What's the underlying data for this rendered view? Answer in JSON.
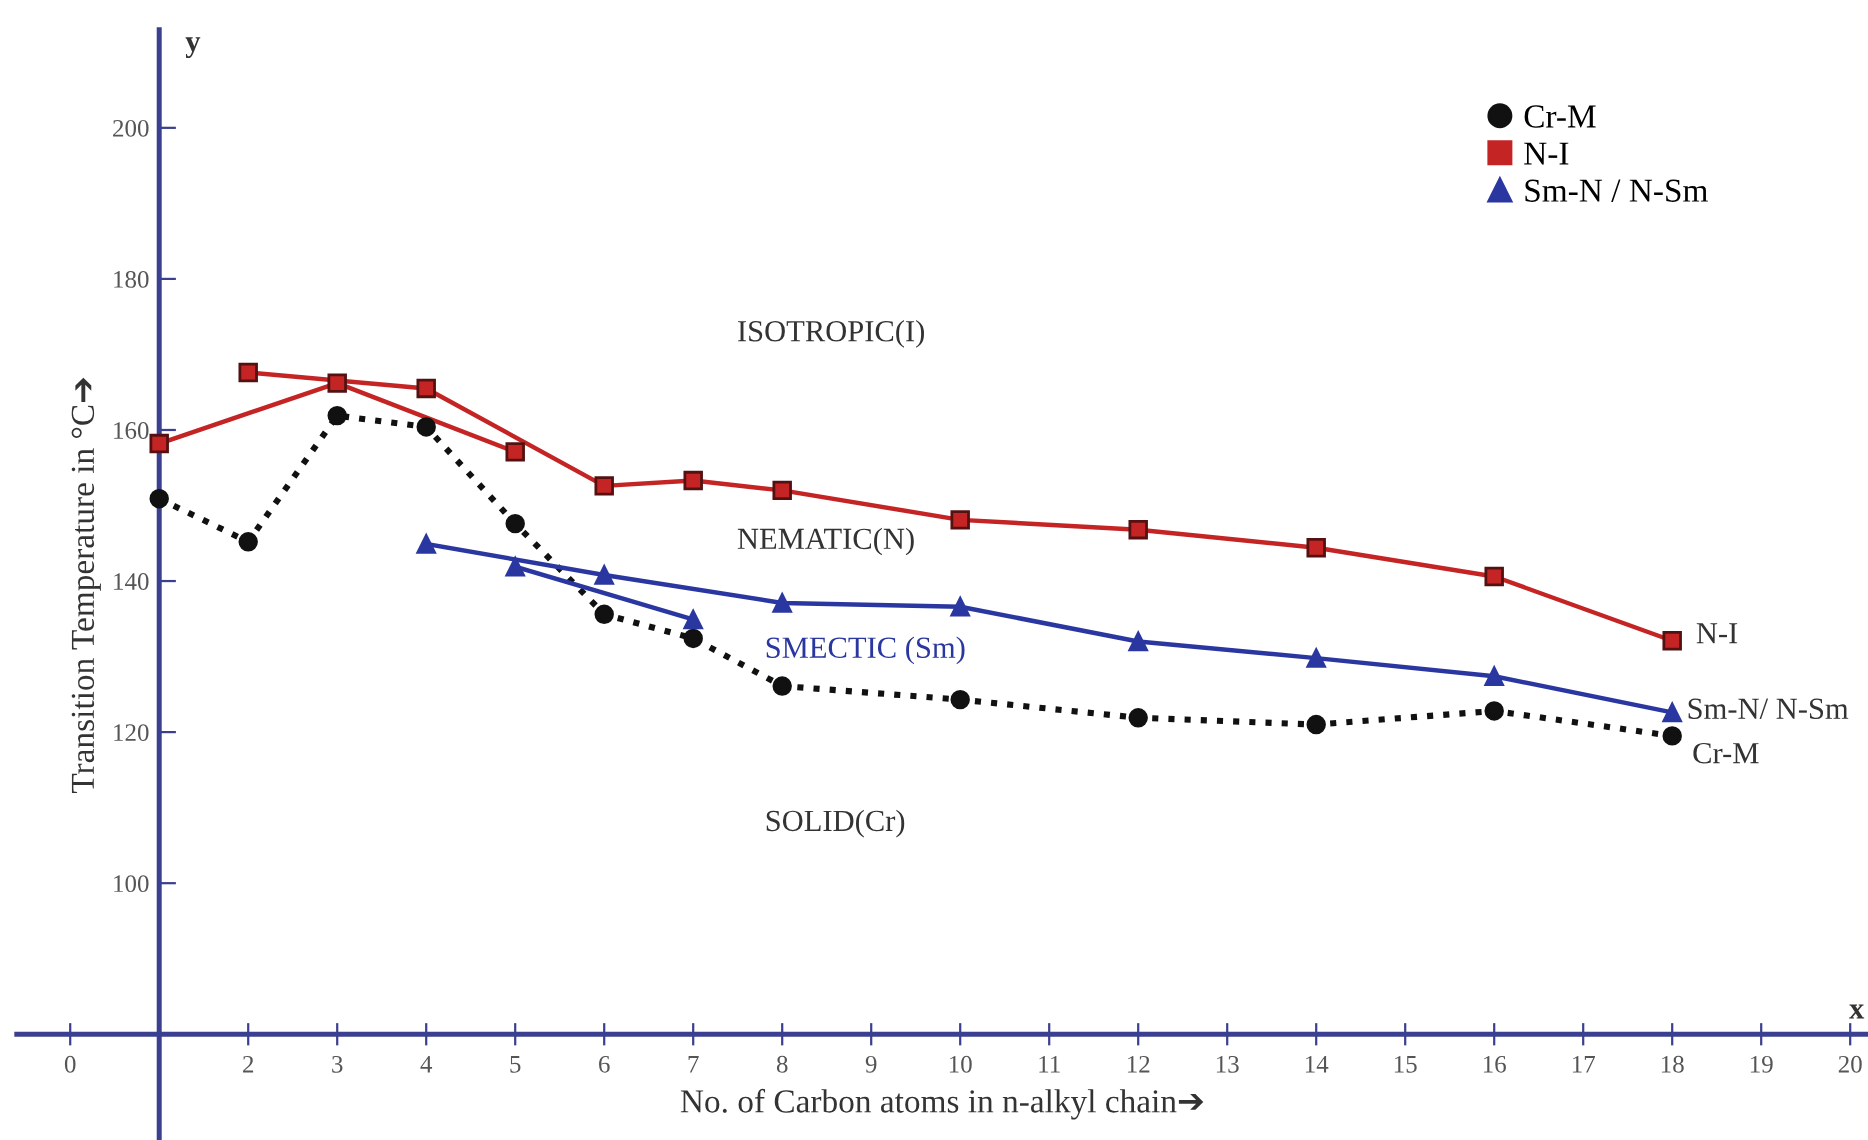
{
  "chart_data": {
    "type": "line",
    "xlabel": "No. of Carbon atoms in n-alkyl chain➔",
    "ylabel": "Transition Temperature in °C➔",
    "xlim": [
      -0.6,
      20.2
    ],
    "ylim": [
      66,
      213
    ],
    "xticks": [
      0,
      2,
      3,
      4,
      5,
      6,
      7,
      8,
      9,
      10,
      11,
      12,
      13,
      14,
      15,
      16,
      17,
      18,
      19,
      20
    ],
    "yticks": [
      100,
      120,
      140,
      160,
      180,
      200
    ],
    "grid": false,
    "legend": "top right",
    "series": [
      {
        "name": "Cr-M",
        "color": "#111111",
        "marker": "circle",
        "line_style": "dotted",
        "x": [
          1,
          2,
          3,
          4,
          5,
          6,
          7,
          8,
          10,
          12,
          14,
          16,
          18
        ],
        "values": [
          150.9,
          145.2,
          161.9,
          160.4,
          147.6,
          135.6,
          132.4,
          126.1,
          124.3,
          121.9,
          121.0,
          122.8,
          119.5
        ]
      },
      {
        "name": "N-I",
        "color": "#c42424",
        "marker": "square",
        "line_style": "solid",
        "x": [
          2,
          4,
          6,
          7,
          8,
          10,
          12,
          14,
          16,
          18
        ],
        "values": [
          167.6,
          165.5,
          152.6,
          153.3,
          152.0,
          148.1,
          146.8,
          144.4,
          140.6,
          132.1
        ]
      },
      {
        "color": "#c42424",
        "marker": "square",
        "line_style": "solid",
        "x": [
          1,
          3,
          5
        ],
        "values": [
          158.2,
          166.2,
          157.1
        ]
      },
      {
        "name": "Sm-N / N-Sm",
        "color": "#2b37a0",
        "marker": "triangle",
        "line_style": "solid",
        "x": [
          4,
          6,
          8,
          10,
          12,
          14,
          16,
          18
        ],
        "values": [
          144.9,
          140.8,
          137.1,
          136.6,
          132.0,
          129.8,
          127.4,
          122.6
        ]
      },
      {
        "color": "#2b37a0",
        "marker": "triangle",
        "line_style": "solid",
        "x": [
          5,
          7
        ],
        "values": [
          141.9,
          134.9
        ]
      }
    ],
    "annotations": [
      "ISOTROPIC(I)",
      "NEMATIC(N)",
      "SMECTIC (Sm)",
      "SOLID(Cr)",
      "N-I",
      "Sm-N/ N-Sm",
      "Cr-M",
      "y",
      "x"
    ]
  }
}
